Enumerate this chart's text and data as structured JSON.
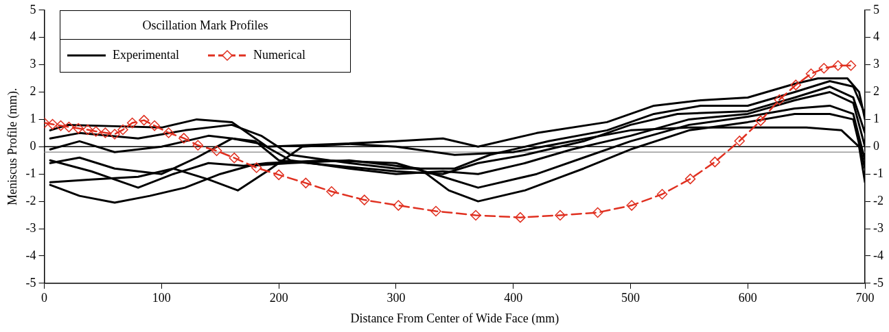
{
  "chart_data": {
    "type": "line",
    "xlabel": "Distance From Center of Wide Face (mm)",
    "ylabel": "Meniscus Profile (mm).",
    "legend_title": "Oscillation Mark Profiles",
    "legend": "top left",
    "grid": false,
    "xlim": [
      0,
      700
    ],
    "xticks": [
      0,
      100,
      200,
      300,
      400,
      500,
      600,
      700
    ],
    "ylim": [
      -5,
      5
    ],
    "yticks": [
      -5,
      -4,
      -3,
      -2,
      -1,
      0,
      1,
      2,
      3,
      4,
      5
    ],
    "y2lim": [
      -5,
      5
    ],
    "y2ticks": [
      -5,
      -4,
      -3,
      -2,
      -1,
      0,
      1,
      2,
      3,
      4,
      5
    ],
    "ref_lines": [
      {
        "axis": "y",
        "value": 0,
        "color": "#000000"
      },
      {
        "axis": "y",
        "value": -0.2,
        "color": "#999999"
      }
    ],
    "series": [
      {
        "name": "Experimental",
        "color": "#000000",
        "marker": "none",
        "line_style": "solid",
        "x": [
          5,
          20,
          60,
          100,
          130,
          160,
          190,
          250,
          300,
          340,
          370,
          420,
          480,
          520,
          560,
          600,
          640,
          660,
          685,
          695,
          700
        ],
        "values": [
          0.6,
          0.8,
          0.75,
          0.7,
          1.0,
          0.9,
          0,
          0.1,
          0.2,
          0.3,
          0,
          0.5,
          0.9,
          1.5,
          1.7,
          1.8,
          2.3,
          2.5,
          2.5,
          2.0,
          1.0
        ]
      },
      {
        "color": "#000000",
        "marker": "none",
        "line_style": "solid",
        "x": [
          5,
          30,
          80,
          120,
          160,
          185,
          210,
          260,
          300,
          350,
          380,
          430,
          480,
          520,
          560,
          600,
          640,
          670,
          690,
          700
        ],
        "values": [
          0.3,
          0.5,
          0.3,
          0.6,
          0.8,
          0.4,
          -0.3,
          -0.6,
          -0.8,
          -0.8,
          -0.3,
          0.2,
          0.6,
          1.2,
          1.5,
          1.5,
          2.0,
          2.4,
          2.2,
          1.2
        ]
      },
      {
        "color": "#000000",
        "marker": "none",
        "line_style": "solid",
        "x": [
          5,
          30,
          60,
          100,
          140,
          180,
          200,
          250,
          300,
          340,
          370,
          410,
          460,
          500,
          540,
          600,
          640,
          670,
          690,
          700
        ],
        "values": [
          -0.1,
          0.2,
          -0.2,
          0,
          0.4,
          0.2,
          -0.5,
          -0.7,
          -0.9,
          -1.0,
          -0.6,
          -0.3,
          0.2,
          0.8,
          1.2,
          1.3,
          1.8,
          2.2,
          1.8,
          0.5
        ]
      },
      {
        "color": "#000000",
        "marker": "none",
        "line_style": "solid",
        "x": [
          5,
          30,
          60,
          100,
          130,
          160,
          185,
          210,
          260,
          300,
          340,
          370,
          410,
          450,
          500,
          550,
          600,
          640,
          670,
          690,
          700
        ],
        "values": [
          -0.6,
          -0.4,
          -0.8,
          -1.0,
          -0.4,
          0.3,
          0.1,
          -0.5,
          -0.8,
          -1.0,
          -0.9,
          -1.0,
          -0.6,
          -0.1,
          0.4,
          1.0,
          1.2,
          1.7,
          2.0,
          1.6,
          0.0
        ]
      },
      {
        "color": "#000000",
        "marker": "none",
        "line_style": "solid",
        "x": [
          5,
          40,
          80,
          110,
          140,
          170,
          190,
          240,
          300,
          340,
          370,
          420,
          460,
          500,
          550,
          600,
          640,
          670,
          690,
          700
        ],
        "values": [
          -0.5,
          -0.9,
          -1.5,
          -1.0,
          -0.6,
          -0.7,
          -0.6,
          -0.5,
          -0.6,
          -1.1,
          -1.5,
          -1.0,
          -0.4,
          0.2,
          0.8,
          1.1,
          1.4,
          1.5,
          1.2,
          -0.5
        ]
      },
      {
        "color": "#000000",
        "marker": "none",
        "line_style": "solid",
        "x": [
          5,
          30,
          60,
          90,
          120,
          150,
          175,
          210,
          260,
          320,
          345,
          370,
          410,
          460,
          500,
          550,
          600,
          640,
          670,
          690,
          700
        ],
        "values": [
          -1.4,
          -1.8,
          -2.05,
          -1.8,
          -1.5,
          -1.0,
          -0.7,
          -0.6,
          -0.5,
          -0.8,
          -1.6,
          -2.0,
          -1.6,
          -0.8,
          -0.1,
          0.6,
          0.9,
          1.2,
          1.2,
          1.0,
          -0.8
        ]
      },
      {
        "color": "#000000",
        "marker": "none",
        "line_style": "solid",
        "x": [
          5,
          40,
          80,
          110,
          140,
          165,
          190,
          220,
          260,
          300,
          350,
          400,
          450,
          500,
          550,
          600,
          650,
          680,
          695,
          700
        ],
        "values": [
          -1.3,
          -1.2,
          -1.1,
          -0.8,
          -1.2,
          -1.6,
          -0.9,
          0,
          0.1,
          0,
          -0.3,
          -0.2,
          0.2,
          0.6,
          0.7,
          0.7,
          0.7,
          0.6,
          0.0,
          -1.3
        ]
      },
      {
        "name": "Numerical",
        "color": "#e03020",
        "marker": "diamond",
        "line_style": "dashed",
        "x": [
          0,
          7,
          14,
          21,
          29,
          37,
          44,
          52,
          60,
          67,
          75,
          85,
          94,
          106,
          119,
          131,
          147,
          162,
          181,
          200,
          223,
          245,
          273,
          302,
          334,
          368,
          406,
          440,
          472,
          501,
          527,
          551,
          572,
          593,
          611,
          627,
          641,
          654,
          665,
          677,
          688
        ],
        "values": [
          0.87,
          0.82,
          0.77,
          0.72,
          0.67,
          0.62,
          0.56,
          0.51,
          0.46,
          0.62,
          0.87,
          0.97,
          0.77,
          0.51,
          0.31,
          0.05,
          -0.15,
          -0.41,
          -0.77,
          -1.03,
          -1.33,
          -1.64,
          -1.95,
          -2.15,
          -2.36,
          -2.51,
          -2.59,
          -2.51,
          -2.41,
          -2.15,
          -1.74,
          -1.18,
          -0.56,
          0.21,
          0.95,
          1.72,
          2.26,
          2.67,
          2.87,
          2.97,
          2.97
        ]
      }
    ]
  }
}
